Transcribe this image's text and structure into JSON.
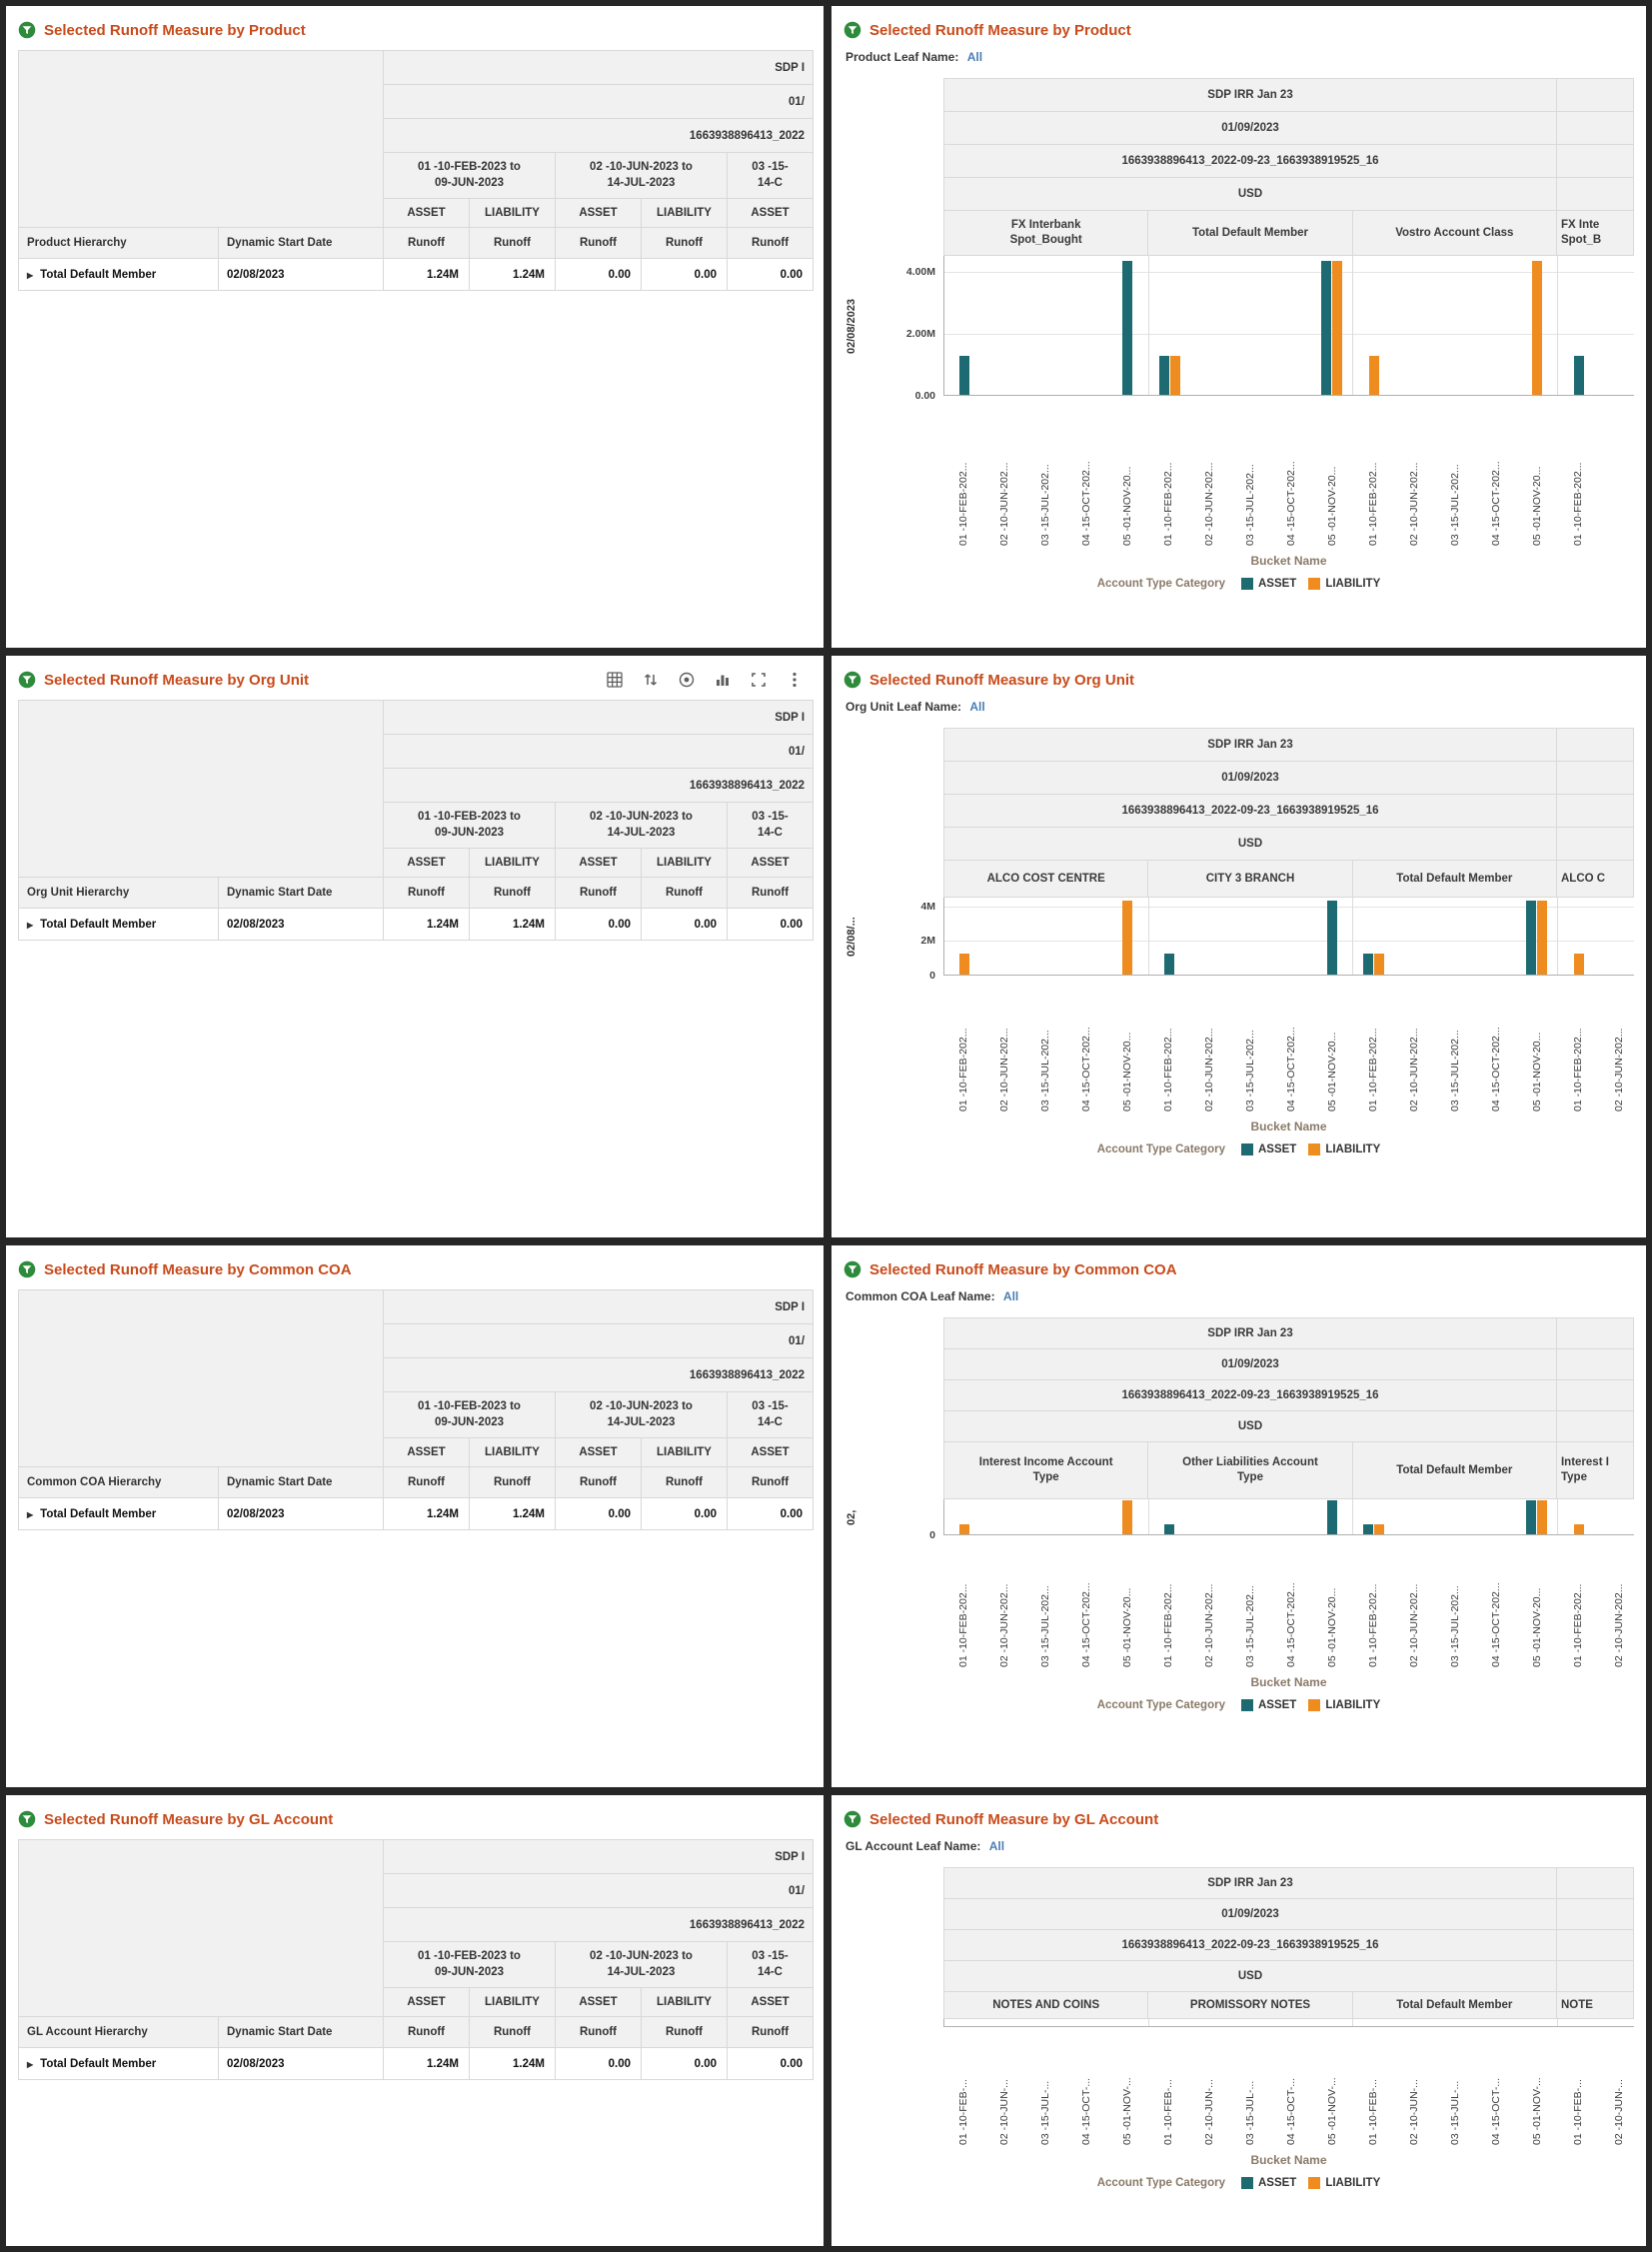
{
  "colors": {
    "asset": "#1d6a72",
    "liability": "#ef8c1f",
    "title": "#c84b1b",
    "leaf_value": "#4a7eb5",
    "header_bg": "#f1f1f1",
    "border": "#d9d9d9",
    "board_bg": "#262626"
  },
  "legend": {
    "title": "Account Type Category",
    "items": [
      {
        "label": "ASSET",
        "color_key": "asset"
      },
      {
        "label": "LIABILITY",
        "color_key": "liability"
      }
    ]
  },
  "pivot_headers": [
    "SDP IRR Jan 23",
    "01/09/2023",
    "1663938896413_2022-09-23_1663938919525_16",
    "USD"
  ],
  "toolbar_icons": [
    "table-view",
    "sort",
    "target",
    "bar-chart",
    "maximize",
    "more-options"
  ],
  "table_template": {
    "clipped_headers": [
      "SDP I",
      "01/",
      "1663938896413_2022"
    ],
    "bucket_groups": [
      {
        "lines": [
          "01 -10-FEB-2023 to",
          "09-JUN-2023"
        ],
        "span": 2
      },
      {
        "lines": [
          "02 -10-JUN-2023 to",
          "14-JUL-2023"
        ],
        "span": 2
      },
      {
        "lines": [
          "03 -15-",
          "14-C"
        ],
        "span": 1
      }
    ],
    "account_types": [
      "ASSET",
      "LIABILITY",
      "ASSET",
      "LIABILITY",
      "ASSET"
    ],
    "measure_label": "Runoff",
    "start_date_header": "Dynamic Start Date",
    "row": {
      "member": "Total Default Member",
      "start_date": "02/08/2023",
      "values": [
        "1.24M",
        "1.24M",
        "0.00",
        "0.00",
        "0.00"
      ]
    }
  },
  "panels": [
    {
      "kind": "table",
      "title": "Selected Runoff Measure by Product",
      "hierarchy_header": "Product Hierarchy",
      "has_toolbar": false
    },
    {
      "kind": "chart",
      "title": "Selected Runoff Measure by Product",
      "leaf_label": "Product Leaf Name:",
      "leaf_value": "All",
      "chart": 0
    },
    {
      "kind": "table",
      "title": "Selected Runoff Measure by Org Unit",
      "hierarchy_header": "Org Unit Hierarchy",
      "has_toolbar": true
    },
    {
      "kind": "chart",
      "title": "Selected Runoff Measure by Org Unit",
      "leaf_label": "Org Unit Leaf Name:",
      "leaf_value": "All",
      "chart": 1
    },
    {
      "kind": "table",
      "title": "Selected Runoff Measure by Common COA",
      "hierarchy_header": "Common COA Hierarchy",
      "has_toolbar": false
    },
    {
      "kind": "chart",
      "title": "Selected Runoff Measure by Common COA",
      "leaf_label": "Common COA Leaf Name:",
      "leaf_value": "All",
      "chart": 2
    },
    {
      "kind": "table",
      "title": "Selected Runoff Measure by GL Account",
      "hierarchy_header": "GL Account Hierarchy",
      "has_toolbar": false
    },
    {
      "kind": "chart",
      "title": "Selected Runoff Measure by GL Account",
      "leaf_label": "GL Account Leaf Name:",
      "leaf_value": "All",
      "chart": 3
    }
  ],
  "chart_data": [
    {
      "type": "bar",
      "title": "Selected Runoff Measure by Product",
      "group_label": "02/08/2023",
      "xlabel": "Bucket Name",
      "legend_title": "Account Type Category",
      "legend_position": "bottom",
      "ylim": [
        0,
        4500000
      ],
      "y_ticks": [
        {
          "label": "4.00M",
          "value": 4000000
        },
        {
          "label": "2.00M",
          "value": 2000000
        },
        {
          "label": "0.00",
          "value": 0
        }
      ],
      "categories": [
        "01 -10-FEB-202...",
        "02 -10-JUN-202...",
        "03 -15-JUL-202...",
        "04 -15-OCT-202...",
        "05 -01-NOV-20..."
      ],
      "sections": [
        {
          "name_lines": [
            "FX Interbank",
            "Spot_Bought"
          ],
          "series": [
            {
              "name": "ASSET",
              "values": [
                1240000,
                0,
                0,
                0,
                4300000
              ]
            }
          ]
        },
        {
          "name_lines": [
            "Total Default Member"
          ],
          "series": [
            {
              "name": "ASSET",
              "values": [
                1240000,
                0,
                0,
                0,
                4300000
              ]
            },
            {
              "name": "LIABILITY",
              "values": [
                1240000,
                0,
                0,
                0,
                4300000
              ]
            }
          ]
        },
        {
          "name_lines": [
            "Vostro Account Class"
          ],
          "series": [
            {
              "name": "LIABILITY",
              "values": [
                1240000,
                0,
                0,
                0,
                4300000
              ]
            }
          ]
        },
        {
          "name_lines": [
            "FX Inte",
            "Spot_B"
          ],
          "clipped": true,
          "visible_buckets": 1,
          "series": [
            {
              "name": "ASSET",
              "values": [
                1240000
              ]
            }
          ]
        }
      ]
    },
    {
      "type": "bar",
      "title": "Selected Runoff Measure by Org Unit",
      "group_label": "02/08/...",
      "xlabel": "Bucket Name",
      "legend_title": "Account Type Category",
      "legend_position": "bottom",
      "ylim": [
        0,
        4500000
      ],
      "y_ticks": [
        {
          "label": "4M",
          "value": 4000000
        },
        {
          "label": "2M",
          "value": 2000000
        },
        {
          "label": "0",
          "value": 0
        }
      ],
      "categories": [
        "01 -10-FEB-202...",
        "02 -10-JUN-202...",
        "03 -15-JUL-202...",
        "04 -15-OCT-202...",
        "05 -01-NOV-20..."
      ],
      "sections": [
        {
          "name_lines": [
            "ALCO COST CENTRE"
          ],
          "series": [
            {
              "name": "LIABILITY",
              "values": [
                1240000,
                0,
                0,
                0,
                4300000
              ]
            }
          ]
        },
        {
          "name_lines": [
            "CITY 3 BRANCH"
          ],
          "series": [
            {
              "name": "ASSET",
              "values": [
                1240000,
                0,
                0,
                0,
                4300000
              ]
            }
          ]
        },
        {
          "name_lines": [
            "Total Default Member"
          ],
          "series": [
            {
              "name": "ASSET",
              "values": [
                1240000,
                0,
                0,
                0,
                4300000
              ]
            },
            {
              "name": "LIABILITY",
              "values": [
                1240000,
                0,
                0,
                0,
                4300000
              ]
            }
          ]
        },
        {
          "name_lines": [
            "ALCO C"
          ],
          "clipped": true,
          "visible_buckets": 2,
          "series": [
            {
              "name": "LIABILITY",
              "values": [
                1240000,
                0
              ]
            }
          ]
        }
      ]
    },
    {
      "type": "bar",
      "title": "Selected Runoff Measure by Common COA",
      "group_label": "02,",
      "xlabel": "Bucket Name",
      "legend_title": "Account Type Category",
      "legend_position": "bottom",
      "ylim": [
        0,
        4500000
      ],
      "y_ticks": [
        {
          "label": "0",
          "value": 0
        }
      ],
      "categories": [
        "01 -10-FEB-202...",
        "02 -10-JUN-202...",
        "03 -15-JUL-202...",
        "04 -15-OCT-202...",
        "05 -01-NOV-20..."
      ],
      "sections": [
        {
          "name_lines": [
            "Interest Income Account",
            "Type"
          ],
          "series": [
            {
              "name": "LIABILITY",
              "values": [
                1240000,
                0,
                0,
                0,
                4300000
              ]
            }
          ]
        },
        {
          "name_lines": [
            "Other Liabilities Account",
            "Type"
          ],
          "series": [
            {
              "name": "ASSET",
              "values": [
                1240000,
                0,
                0,
                0,
                4300000
              ]
            }
          ]
        },
        {
          "name_lines": [
            "Total Default Member"
          ],
          "series": [
            {
              "name": "ASSET",
              "values": [
                1240000,
                0,
                0,
                0,
                4300000
              ]
            },
            {
              "name": "LIABILITY",
              "values": [
                1240000,
                0,
                0,
                0,
                4300000
              ]
            }
          ]
        },
        {
          "name_lines": [
            "Interest I",
            "Type"
          ],
          "clipped": true,
          "visible_buckets": 2,
          "series": [
            {
              "name": "LIABILITY",
              "values": [
                1240000,
                0
              ]
            }
          ]
        }
      ]
    },
    {
      "type": "bar",
      "title": "Selected Runoff Measure by GL Account",
      "group_label": "",
      "xlabel": "Bucket Name",
      "legend_title": "Account Type Category",
      "legend_position": "bottom",
      "ylim": [
        0,
        4500000
      ],
      "y_ticks": [],
      "categories": [
        "01 -10-FEB-...",
        "02 -10-JUN-...",
        "03 -15-JUL-...",
        "04 -15-OCT-...",
        "05 -01-NOV-..."
      ],
      "sections": [
        {
          "name_lines": [
            "NOTES AND COINS"
          ],
          "series": []
        },
        {
          "name_lines": [
            "PROMISSORY NOTES"
          ],
          "series": []
        },
        {
          "name_lines": [
            "Total Default Member"
          ],
          "series": []
        },
        {
          "name_lines": [
            "NOTE"
          ],
          "clipped": true,
          "visible_buckets": 2,
          "series": []
        }
      ]
    }
  ]
}
